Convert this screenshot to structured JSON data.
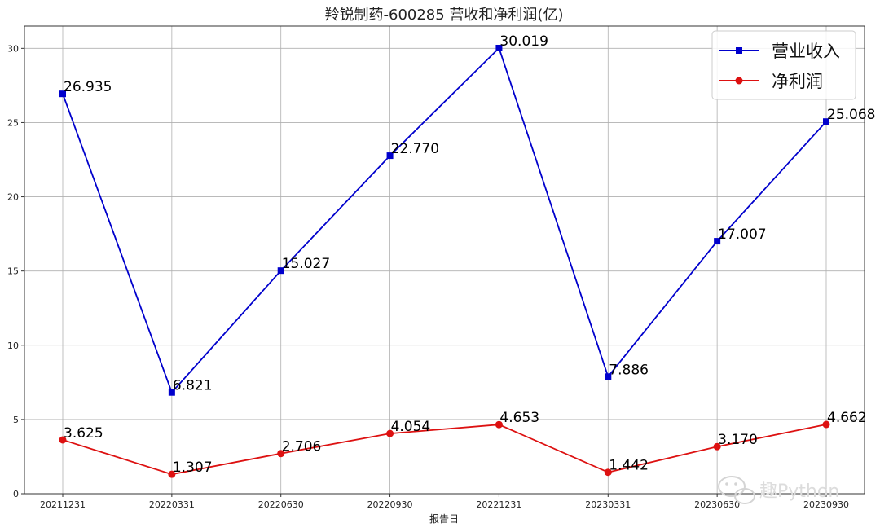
{
  "chart_data": {
    "type": "line",
    "title": "羚锐制药-600285 营收和净利润(亿)",
    "xlabel": "报告日",
    "ylabel": "",
    "categories": [
      "20211231",
      "20220331",
      "20220630",
      "20220930",
      "20221231",
      "20230331",
      "20230630",
      "20230930"
    ],
    "ylim": [
      0,
      31.5
    ],
    "yticks": [
      0,
      5,
      10,
      15,
      20,
      25,
      30
    ],
    "grid": true,
    "legend_position": "top-right",
    "series": [
      {
        "name": "营业收入",
        "color": "#0000cc",
        "marker": "square",
        "values": [
          26.935,
          6.821,
          15.027,
          22.77,
          30.019,
          7.886,
          17.007,
          25.068
        ],
        "labels": [
          "26.935",
          "6.821",
          "15.027",
          "22.770",
          "30.019",
          "7.886",
          "17.007",
          "25.068"
        ]
      },
      {
        "name": "净利润",
        "color": "#dd1111",
        "marker": "circle",
        "values": [
          3.625,
          1.307,
          2.706,
          4.054,
          4.653,
          1.442,
          3.17,
          4.662
        ],
        "labels": [
          "3.625",
          "1.307",
          "2.706",
          "4.054",
          "4.653",
          "1.442",
          "3.170",
          "4.662"
        ]
      }
    ]
  },
  "watermark": {
    "text": "趣Python",
    "icon": "wechat-icon"
  }
}
